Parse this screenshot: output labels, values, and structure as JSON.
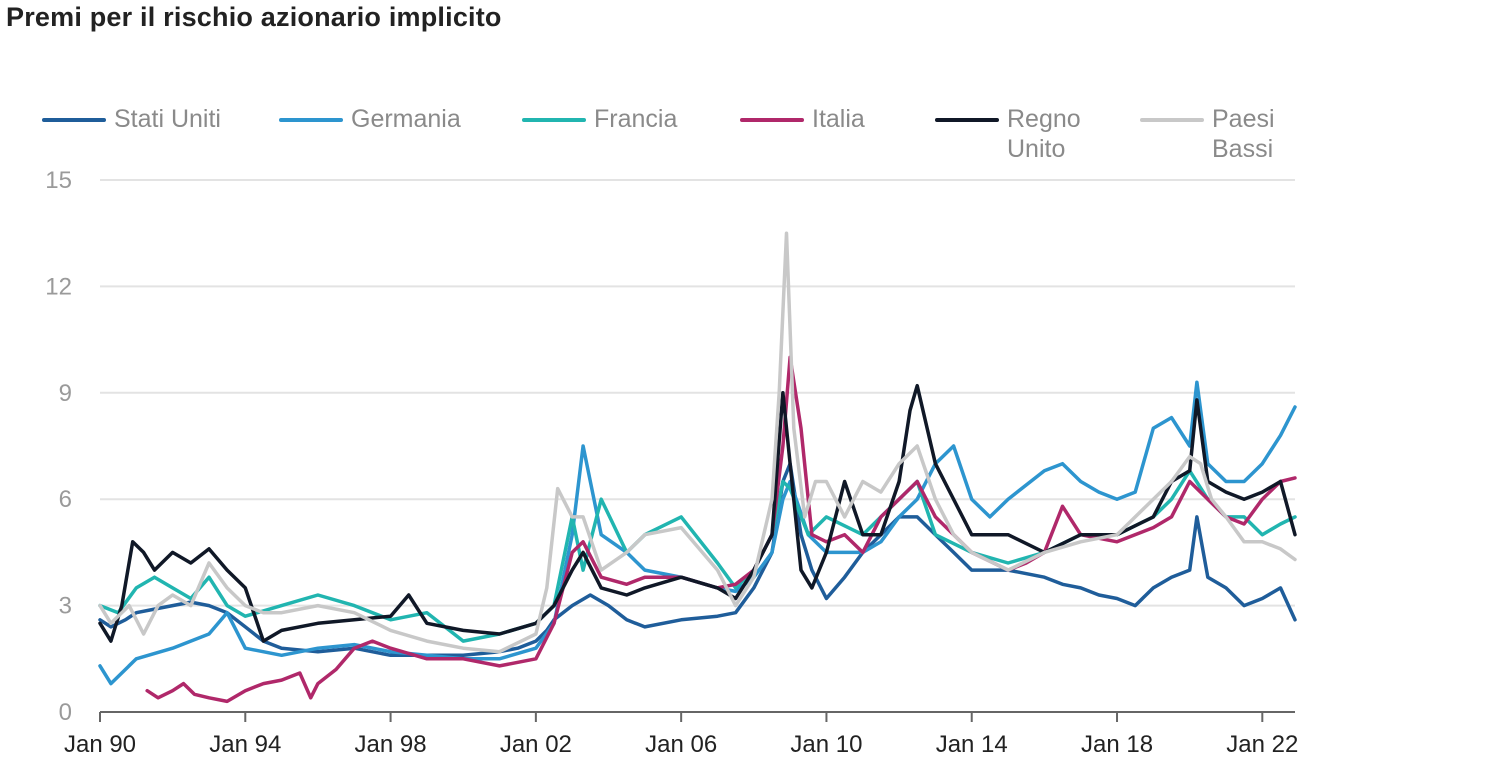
{
  "chart_data": {
    "type": "line",
    "title": "Premi per il rischio azionario implicito",
    "xlabel": "",
    "ylabel": "",
    "xlim": [
      1990.0,
      2022.9
    ],
    "ylim": [
      0,
      15
    ],
    "y_ticks": [
      "0",
      "3",
      "6",
      "9",
      "12",
      "15"
    ],
    "x_ticks": [
      {
        "label": "Jan 90",
        "x": 1990
      },
      {
        "label": "Jan 94",
        "x": 1994
      },
      {
        "label": "Jan 98",
        "x": 1998
      },
      {
        "label": "Jan 02",
        "x": 2002
      },
      {
        "label": "Jan 06",
        "x": 2006
      },
      {
        "label": "Jan 10",
        "x": 2010
      },
      {
        "label": "Jan 14",
        "x": 2014
      },
      {
        "label": "Jan 18",
        "x": 2018
      },
      {
        "label": "Jan 22",
        "x": 2022
      }
    ],
    "grid": true,
    "legend_position": "top",
    "series": [
      {
        "name": "Stati Uniti",
        "color": "#1f5d9a",
        "x": [
          1990.0,
          1990.3,
          1990.7,
          1991.0,
          1991.5,
          1992.0,
          1992.5,
          1993.0,
          1993.5,
          1994.0,
          1994.5,
          1995.0,
          1996.0,
          1997.0,
          1998.0,
          1999.0,
          2000.0,
          2001.0,
          2001.5,
          2002.0,
          2002.3,
          2002.5,
          2003.0,
          2003.5,
          2004.0,
          2004.5,
          2005.0,
          2006.0,
          2007.0,
          2007.5,
          2008.0,
          2008.5,
          2008.8,
          2009.0,
          2009.3,
          2009.6,
          2010.0,
          2010.5,
          2011.0,
          2011.5,
          2012.0,
          2012.5,
          2013.0,
          2013.5,
          2014.0,
          2015.0,
          2016.0,
          2016.5,
          2017.0,
          2017.5,
          2018.0,
          2018.5,
          2019.0,
          2019.5,
          2020.0,
          2020.2,
          2020.5,
          2021.0,
          2021.5,
          2022.0,
          2022.5,
          2022.9
        ],
        "y": [
          2.6,
          2.4,
          2.6,
          2.8,
          2.9,
          3.0,
          3.1,
          3.0,
          2.8,
          2.4,
          2.0,
          1.8,
          1.7,
          1.8,
          1.6,
          1.6,
          1.6,
          1.7,
          1.8,
          2.0,
          2.3,
          2.6,
          3.0,
          3.3,
          3.0,
          2.6,
          2.4,
          2.6,
          2.7,
          2.8,
          3.5,
          4.5,
          6.5,
          7.0,
          5.0,
          4.0,
          3.2,
          3.8,
          4.5,
          5.0,
          5.5,
          5.5,
          5.0,
          4.5,
          4.0,
          4.0,
          3.8,
          3.6,
          3.5,
          3.3,
          3.2,
          3.0,
          3.5,
          3.8,
          4.0,
          5.5,
          3.8,
          3.5,
          3.0,
          3.2,
          3.5,
          2.6
        ]
      },
      {
        "name": "Germania",
        "color": "#2d95cf",
        "x": [
          1990.0,
          1990.3,
          1991.0,
          1992.0,
          1993.0,
          1993.5,
          1994.0,
          1995.0,
          1996.0,
          1997.0,
          1998.0,
          1999.0,
          2000.0,
          2001.0,
          2002.0,
          2002.5,
          2003.0,
          2003.3,
          2003.8,
          2004.5,
          2005.0,
          2006.0,
          2007.0,
          2007.5,
          2008.0,
          2008.5,
          2008.8,
          2009.0,
          2009.5,
          2010.0,
          2011.0,
          2011.5,
          2012.0,
          2012.5,
          2013.0,
          2013.5,
          2014.0,
          2014.5,
          2015.0,
          2016.0,
          2016.5,
          2017.0,
          2017.5,
          2018.0,
          2018.5,
          2019.0,
          2019.5,
          2020.0,
          2020.2,
          2020.5,
          2021.0,
          2021.5,
          2022.0,
          2022.5,
          2022.9
        ],
        "y": [
          1.3,
          0.8,
          1.5,
          1.8,
          2.2,
          2.8,
          1.8,
          1.6,
          1.8,
          1.9,
          1.7,
          1.6,
          1.5,
          1.5,
          1.8,
          2.5,
          5.0,
          7.5,
          5.0,
          4.5,
          4.0,
          3.8,
          3.5,
          3.4,
          3.8,
          4.5,
          6.0,
          6.5,
          5.0,
          4.5,
          4.5,
          4.8,
          5.5,
          6.0,
          7.0,
          7.5,
          6.0,
          5.5,
          6.0,
          6.8,
          7.0,
          6.5,
          6.2,
          6.0,
          6.2,
          8.0,
          8.3,
          7.5,
          9.3,
          7.0,
          6.5,
          6.5,
          7.0,
          7.8,
          8.6
        ]
      },
      {
        "name": "Francia",
        "color": "#21b5b0",
        "x": [
          1990.0,
          1990.5,
          1991.0,
          1991.5,
          1992.0,
          1992.5,
          1993.0,
          1993.5,
          1994.0,
          1995.0,
          1996.0,
          1997.0,
          1998.0,
          1999.0,
          2000.0,
          2001.0,
          2002.0,
          2002.5,
          2003.0,
          2003.3,
          2003.8,
          2004.5,
          2005.0,
          2006.0,
          2007.0,
          2007.5,
          2008.0,
          2008.5,
          2008.8,
          2009.0,
          2009.5,
          2010.0,
          2011.0,
          2011.5,
          2012.0,
          2012.5,
          2013.0,
          2014.0,
          2015.0,
          2016.0,
          2017.0,
          2018.0,
          2019.0,
          2019.5,
          2020.0,
          2020.5,
          2021.0,
          2021.5,
          2022.0,
          2022.5,
          2022.9
        ],
        "y": [
          3.0,
          2.8,
          3.5,
          3.8,
          3.5,
          3.2,
          3.8,
          3.0,
          2.7,
          3.0,
          3.3,
          3.0,
          2.6,
          2.8,
          2.0,
          2.2,
          2.5,
          3.0,
          5.5,
          4.0,
          6.0,
          4.5,
          5.0,
          5.5,
          4.2,
          3.5,
          4.0,
          5.0,
          6.5,
          6.3,
          5.0,
          5.5,
          5.0,
          5.5,
          6.0,
          6.5,
          5.0,
          4.5,
          4.2,
          4.5,
          5.0,
          5.0,
          5.5,
          6.0,
          6.8,
          6.0,
          5.5,
          5.5,
          5.0,
          5.3,
          5.5
        ]
      },
      {
        "name": "Italia",
        "color": "#b0286a",
        "x": [
          1991.3,
          1991.6,
          1992.0,
          1992.3,
          1992.6,
          1993.0,
          1993.5,
          1994.0,
          1994.5,
          1995.0,
          1995.5,
          1995.8,
          1996.0,
          1996.5,
          1997.0,
          1997.5,
          1998.0,
          1999.0,
          2000.0,
          2001.0,
          2002.0,
          2002.5,
          2003.0,
          2003.3,
          2003.8,
          2004.5,
          2005.0,
          2006.0,
          2007.0,
          2007.5,
          2008.0,
          2008.5,
          2008.8,
          2009.0,
          2009.3,
          2009.6,
          2010.0,
          2010.5,
          2011.0,
          2011.5,
          2012.0,
          2012.5,
          2013.0,
          2014.0,
          2015.0,
          2015.5,
          2016.0,
          2016.5,
          2017.0,
          2018.0,
          2019.0,
          2019.5,
          2020.0,
          2020.5,
          2021.0,
          2021.5,
          2022.0,
          2022.5,
          2022.9
        ],
        "y": [
          0.6,
          0.4,
          0.6,
          0.8,
          0.5,
          0.4,
          0.3,
          0.6,
          0.8,
          0.9,
          1.1,
          0.4,
          0.8,
          1.2,
          1.8,
          2.0,
          1.8,
          1.5,
          1.5,
          1.3,
          1.5,
          2.5,
          4.5,
          4.8,
          3.8,
          3.6,
          3.8,
          3.8,
          3.5,
          3.6,
          4.0,
          5.0,
          7.5,
          10.0,
          8.0,
          5.0,
          4.8,
          5.0,
          4.5,
          5.5,
          6.0,
          6.5,
          5.5,
          4.5,
          4.0,
          4.2,
          4.5,
          5.8,
          5.0,
          4.8,
          5.2,
          5.5,
          6.5,
          6.0,
          5.5,
          5.3,
          6.0,
          6.5,
          6.6
        ]
      },
      {
        "name": "Regno\nUnito",
        "color": "#101827",
        "x": [
          1990.0,
          1990.3,
          1990.6,
          1990.9,
          1991.2,
          1991.5,
          1992.0,
          1992.5,
          1993.0,
          1993.5,
          1994.0,
          1994.5,
          1995.0,
          1996.0,
          1997.0,
          1998.0,
          1998.5,
          1999.0,
          2000.0,
          2001.0,
          2002.0,
          2002.5,
          2003.0,
          2003.3,
          2003.8,
          2004.5,
          2005.0,
          2006.0,
          2007.0,
          2007.5,
          2008.0,
          2008.5,
          2008.8,
          2009.0,
          2009.3,
          2009.6,
          2010.0,
          2010.5,
          2011.0,
          2011.5,
          2012.0,
          2012.3,
          2012.5,
          2013.0,
          2014.0,
          2015.0,
          2016.0,
          2017.0,
          2018.0,
          2019.0,
          2019.5,
          2020.0,
          2020.2,
          2020.5,
          2021.0,
          2021.5,
          2022.0,
          2022.5,
          2022.9
        ],
        "y": [
          2.5,
          2.0,
          3.0,
          4.8,
          4.5,
          4.0,
          4.5,
          4.2,
          4.6,
          4.0,
          3.5,
          2.0,
          2.3,
          2.5,
          2.6,
          2.7,
          3.3,
          2.5,
          2.3,
          2.2,
          2.5,
          3.0,
          4.0,
          4.5,
          3.5,
          3.3,
          3.5,
          3.8,
          3.5,
          3.2,
          4.0,
          5.0,
          9.0,
          7.0,
          4.0,
          3.5,
          4.5,
          6.5,
          5.0,
          5.0,
          6.5,
          8.5,
          9.2,
          7.0,
          5.0,
          5.0,
          4.5,
          5.0,
          5.0,
          5.5,
          6.5,
          6.8,
          8.8,
          6.5,
          6.2,
          6.0,
          6.2,
          6.5,
          5.0
        ]
      },
      {
        "name": "Paesi\nBassi",
        "color": "#c8c8c8",
        "x": [
          1990.0,
          1990.3,
          1990.8,
          1991.2,
          1991.6,
          1992.0,
          1992.5,
          1993.0,
          1993.5,
          1994.0,
          1994.5,
          1995.0,
          1996.0,
          1997.0,
          1998.0,
          1999.0,
          2000.0,
          2001.0,
          2002.0,
          2002.3,
          2002.6,
          2003.0,
          2003.3,
          2003.8,
          2004.5,
          2005.0,
          2006.0,
          2007.0,
          2007.5,
          2008.0,
          2008.5,
          2008.7,
          2008.9,
          2009.1,
          2009.4,
          2009.7,
          2010.0,
          2010.5,
          2011.0,
          2011.5,
          2012.0,
          2012.5,
          2013.0,
          2013.5,
          2014.0,
          2015.0,
          2016.0,
          2017.0,
          2018.0,
          2019.0,
          2019.5,
          2020.0,
          2020.3,
          2020.6,
          2021.0,
          2021.5,
          2022.0,
          2022.5,
          2022.9
        ],
        "y": [
          3.0,
          2.5,
          3.0,
          2.2,
          3.0,
          3.3,
          3.0,
          4.2,
          3.5,
          3.0,
          2.8,
          2.8,
          3.0,
          2.8,
          2.3,
          2.0,
          1.8,
          1.7,
          2.2,
          3.5,
          6.3,
          5.5,
          5.5,
          4.0,
          4.5,
          5.0,
          5.2,
          4.0,
          3.0,
          3.8,
          6.0,
          9.0,
          13.5,
          8.0,
          5.5,
          6.5,
          6.5,
          5.5,
          6.5,
          6.2,
          7.0,
          7.5,
          6.0,
          5.0,
          4.5,
          4.0,
          4.5,
          4.8,
          5.0,
          6.0,
          6.5,
          7.2,
          7.0,
          6.0,
          5.5,
          4.8,
          4.8,
          4.6,
          4.3
        ]
      }
    ]
  }
}
